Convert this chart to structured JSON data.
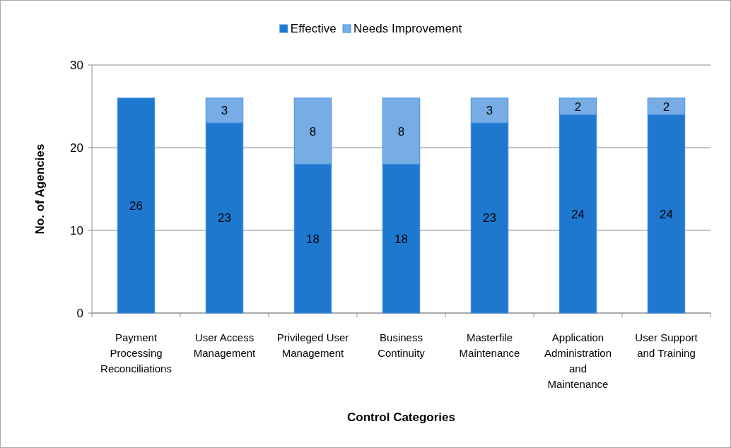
{
  "chart_data": {
    "type": "bar",
    "stacked": true,
    "xlabel": "Control Categories",
    "ylabel": "No. of Agencies",
    "categories": [
      "Payment Processing Reconciliations",
      "User Access Management",
      "Privileged User Management",
      "Business Continuity",
      "Masterfile Maintenance",
      "Application Administration and Maintenance",
      "User Support and Training"
    ],
    "series": [
      {
        "name": "Effective",
        "color": "#1f78d0",
        "values": [
          26,
          23,
          18,
          18,
          23,
          24,
          24
        ]
      },
      {
        "name": "Needs Improvement",
        "color": "#77ade4",
        "values": [
          null,
          3,
          8,
          8,
          3,
          2,
          2
        ]
      }
    ],
    "ylim": [
      0,
      30
    ],
    "yticks": [
      0,
      10,
      20,
      30
    ],
    "grid": "y",
    "legend": "top",
    "data_labels": true
  }
}
